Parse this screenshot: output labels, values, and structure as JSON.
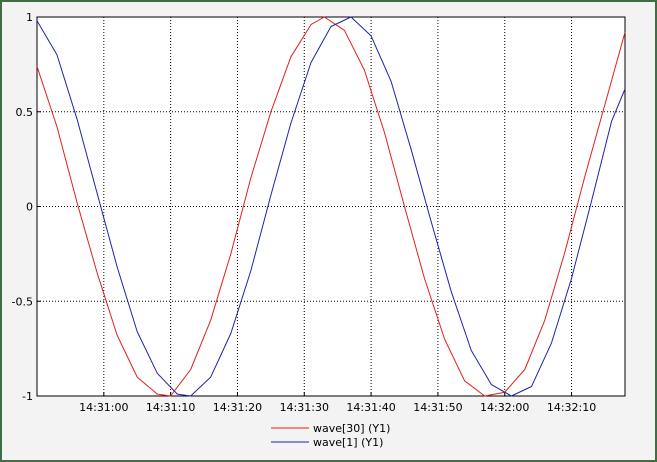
{
  "chart_data": {
    "type": "line",
    "title": "",
    "xlabel": "",
    "ylabel": "",
    "x_axis": "time",
    "x_start": "14:30:50",
    "xlim": [
      "14:30:50",
      "14:32:18"
    ],
    "ylim": [
      -1,
      1
    ],
    "grid": true,
    "grid_style": "dotted",
    "legend_position": "bottom-center",
    "x_ticks": [
      "14:31:00",
      "14:31:10",
      "14:31:20",
      "14:31:30",
      "14:31:40",
      "14:31:50",
      "14:32:00",
      "14:32:10"
    ],
    "y_ticks": [
      "1",
      "0.5",
      "0",
      "-0.5",
      "-1"
    ],
    "series": [
      {
        "name": "wave[30] (Y1)",
        "color": "#e0201c",
        "x": [
          "14:30:50",
          "14:30:53",
          "14:30:56",
          "14:30:59",
          "14:31:02",
          "14:31:05",
          "14:31:08",
          "14:31:10",
          "14:31:13",
          "14:31:16",
          "14:31:19",
          "14:31:22",
          "14:31:25",
          "14:31:28",
          "14:31:31",
          "14:31:33",
          "14:31:36",
          "14:31:39",
          "14:31:42",
          "14:31:45",
          "14:31:48",
          "14:31:51",
          "14:31:54",
          "14:31:57",
          "14:32:00",
          "14:32:03",
          "14:32:06",
          "14:32:09",
          "14:32:12",
          "14:32:15",
          "14:32:18"
        ],
        "values": [
          0.74,
          0.42,
          0.02,
          -0.35,
          -0.68,
          -0.9,
          -0.99,
          -1,
          -0.86,
          -0.6,
          -0.25,
          0.15,
          0.5,
          0.79,
          0.96,
          1,
          0.93,
          0.72,
          0.39,
          0.0,
          -0.38,
          -0.7,
          -0.92,
          -1,
          -0.98,
          -0.86,
          -0.6,
          -0.24,
          0.16,
          0.54,
          0.92
        ]
      },
      {
        "name": "wave[1] (Y1)",
        "color": "#1c24a8",
        "x": [
          "14:30:50",
          "14:30:53",
          "14:30:56",
          "14:30:59",
          "14:31:02",
          "14:31:05",
          "14:31:08",
          "14:31:11",
          "14:31:13",
          "14:31:16",
          "14:31:19",
          "14:31:22",
          "14:31:25",
          "14:31:28",
          "14:31:31",
          "14:31:34",
          "14:31:37",
          "14:31:40",
          "14:31:43",
          "14:31:46",
          "14:31:49",
          "14:31:52",
          "14:31:55",
          "14:31:58",
          "14:32:01",
          "14:32:04",
          "14:32:07",
          "14:32:10",
          "14:32:13",
          "14:32:16",
          "14:32:18"
        ],
        "values": [
          0.98,
          0.8,
          0.46,
          0.07,
          -0.32,
          -0.66,
          -0.88,
          -0.99,
          -1,
          -0.9,
          -0.67,
          -0.34,
          0.06,
          0.44,
          0.76,
          0.95,
          1,
          0.9,
          0.66,
          0.3,
          -0.08,
          -0.45,
          -0.76,
          -0.94,
          -1,
          -0.95,
          -0.72,
          -0.38,
          0.03,
          0.45,
          0.62
        ]
      }
    ]
  }
}
